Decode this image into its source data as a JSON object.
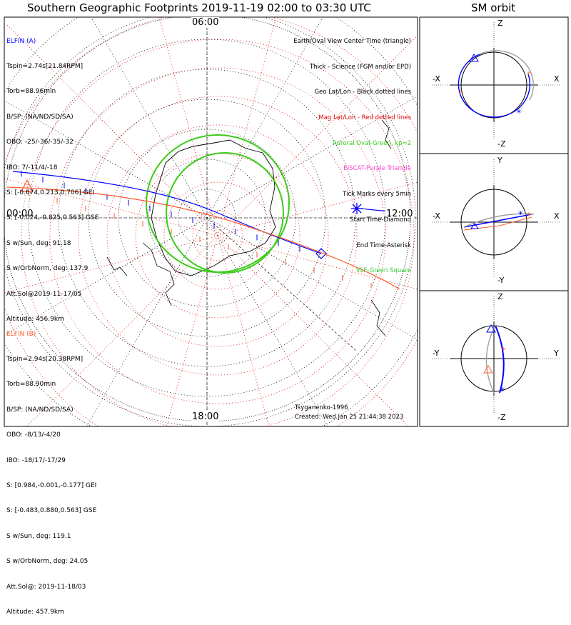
{
  "main_title": "Southern Geographic Footprints 2019-11-19 02:00 to 03:30 UTC",
  "orbit_title": "SM orbit",
  "colors": {
    "elfin_a": "#0000ff",
    "elfin_b": "#ff5a2a",
    "aurora": "#3acc1a",
    "geo_grid": "#000000",
    "mag_grid": "#e00000",
    "eiscat": "#ff44cc",
    "vlf": "#33cc33",
    "orbit_gray": "#a0a0a0"
  },
  "time_labels": {
    "top": "06:00",
    "left": "00:00",
    "right": "12:00",
    "bottom": "18:00"
  },
  "elfin_a": {
    "name": "ELFIN (A)",
    "lines": [
      "Tspin=2.74s[21.84RPM]",
      "Torb=88.96min",
      "B/SP: (NA/ND/SD/SA)",
      "OBO: -25/-36/-35/-32",
      "IBO: 7/-11/4/-18",
      "S: [-0.674,0.213,0.706] GEI",
      "S: [-0.024,-0.825,0.563] GSE",
      "S w/Sun, deg: 91.18",
      "S w/OrbNorm, deg: 137.9",
      "Att.Sol@2019-11-17/05",
      "Altitude: 456.9km"
    ]
  },
  "elfin_b": {
    "name": "ELFIN (B)",
    "lines": [
      "Tspin=2.94s[20.38RPM]",
      "Torb=88.90min",
      "B/SP: (NA/ND/SD/SA)",
      "OBO: -8/13/-4/20",
      "IBO: -18/17/-17/29",
      "S: [0.984,-0.001,-0.177] GEI",
      "S: [-0.483,0.880,0.563] GSE",
      "S w/Sun, deg: 119.1",
      "S w/OrbNorm, deg: 24.05",
      "Att.Sol@: 2019-11-18/03",
      "Altitude: 457.9km"
    ]
  },
  "legend": [
    {
      "text": "Earth/Oval View Center Time (triangle)",
      "color": "#000000"
    },
    {
      "text": "Thick - Science (FGM and/or EPD)",
      "color": "#000000"
    },
    {
      "text": "Geo Lat/Lon - Black dotted lines",
      "color": "#000000"
    },
    {
      "text": "Mag Lat/Lon - Red dotted lines",
      "color": "#e00000"
    },
    {
      "text": "Auroral Oval-Green, kp=2",
      "color": "#3acc1a"
    },
    {
      "text": "EISCAT-Purple Triangle",
      "color": "#ff44cc"
    },
    {
      "text": "Tick Marks every 5min",
      "color": "#000000"
    },
    {
      "text": "Start Time-Diamond",
      "color": "#000000"
    },
    {
      "text": "End Time-Asterisk",
      "color": "#000000"
    },
    {
      "text": "VLF-Green Square",
      "color": "#33cc33"
    }
  ],
  "model": "Tsyganenko-1996",
  "created": "Created: Wed Jan 25 21:44:38 2023",
  "orbit_panels": [
    {
      "top": "Z",
      "bottom": "-Z",
      "left": "-X",
      "right": "X"
    },
    {
      "top": "Y",
      "bottom": "-Y",
      "left": "-X",
      "right": "X"
    },
    {
      "top": "Z",
      "bottom": "-Z",
      "left": "-Y",
      "right": "Y"
    }
  ],
  "chart_data": {
    "type": "scatter",
    "title": "Southern Geographic Footprints 2019-11-19 02:00 to 03:30 UTC",
    "projection": "south polar stereographic",
    "time_range": [
      "2019-11-19 02:00",
      "2019-11-19 03:30"
    ],
    "series": [
      {
        "name": "ELFIN (A)"
      },
      {
        "name": "ELFIN (B)"
      }
    ]
  }
}
